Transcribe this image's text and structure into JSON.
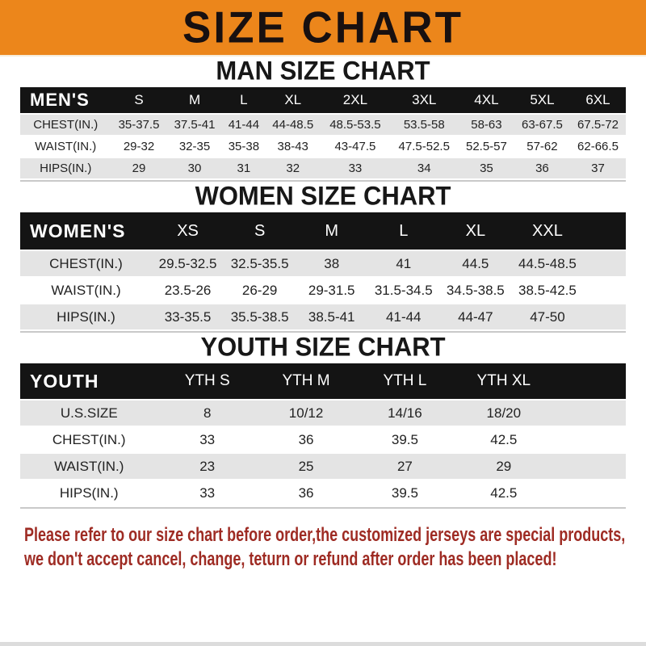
{
  "banner": {
    "title": "SIZE CHART",
    "bg_color": "#EC861B",
    "text_color": "#181010"
  },
  "sections": [
    {
      "heading": "MAN SIZE CHART",
      "table": {
        "header_label": "MEN'S",
        "columns": [
          "S",
          "M",
          "L",
          "XL",
          "2XL",
          "3XL",
          "4XL",
          "5XL",
          "6XL"
        ],
        "rows": [
          {
            "label": "CHEST(IN.)",
            "values": [
              "35-37.5",
              "37.5-41",
              "41-44",
              "44-48.5",
              "48.5-53.5",
              "53.5-58",
              "58-63",
              "63-67.5",
              "67.5-72"
            ]
          },
          {
            "label": "WAIST(IN.)",
            "values": [
              "29-32",
              "32-35",
              "35-38",
              "38-43",
              "43-47.5",
              "47.5-52.5",
              "52.5-57",
              "57-62",
              "62-66.5"
            ]
          },
          {
            "label": "HIPS(IN.)",
            "values": [
              "29",
              "30",
              "31",
              "32",
              "33",
              "34",
              "35",
              "36",
              "37"
            ]
          }
        ]
      }
    },
    {
      "heading": "WOMEN SIZE CHART",
      "table": {
        "header_label": "WOMEN'S",
        "columns": [
          "XS",
          "S",
          "M",
          "L",
          "XL",
          "XXL"
        ],
        "rows": [
          {
            "label": "CHEST(IN.)",
            "values": [
              "29.5-32.5",
              "32.5-35.5",
              "38",
              "41",
              "44.5",
              "44.5-48.5"
            ]
          },
          {
            "label": "WAIST(IN.)",
            "values": [
              "23.5-26",
              "26-29",
              "29-31.5",
              "31.5-34.5",
              "34.5-38.5",
              "38.5-42.5"
            ]
          },
          {
            "label": "HIPS(IN.)",
            "values": [
              "33-35.5",
              "35.5-38.5",
              "38.5-41",
              "41-44",
              "44-47",
              "47-50"
            ]
          }
        ]
      }
    },
    {
      "heading": "YOUTH SIZE CHART",
      "table": {
        "header_label": "YOUTH",
        "columns": [
          "YTH S",
          "YTH M",
          "YTH L",
          "YTH XL"
        ],
        "rows": [
          {
            "label": "U.S.SIZE",
            "values": [
              "8",
              "10/12",
              "14/16",
              "18/20"
            ]
          },
          {
            "label": "CHEST(IN.)",
            "values": [
              "33",
              "36",
              "39.5",
              "42.5"
            ]
          },
          {
            "label": "WAIST(IN.)",
            "values": [
              "23",
              "25",
              "27",
              "29"
            ]
          },
          {
            "label": "HIPS(IN.)",
            "values": [
              "33",
              "36",
              "39.5",
              "42.5"
            ]
          }
        ]
      }
    }
  ],
  "footer": {
    "line1": "Please refer to our size chart before order,the customized jerseys are special products,",
    "line2": "we don't accept cancel, change, teturn or refund after order has been placed!",
    "text_color": "#9E2B23"
  }
}
